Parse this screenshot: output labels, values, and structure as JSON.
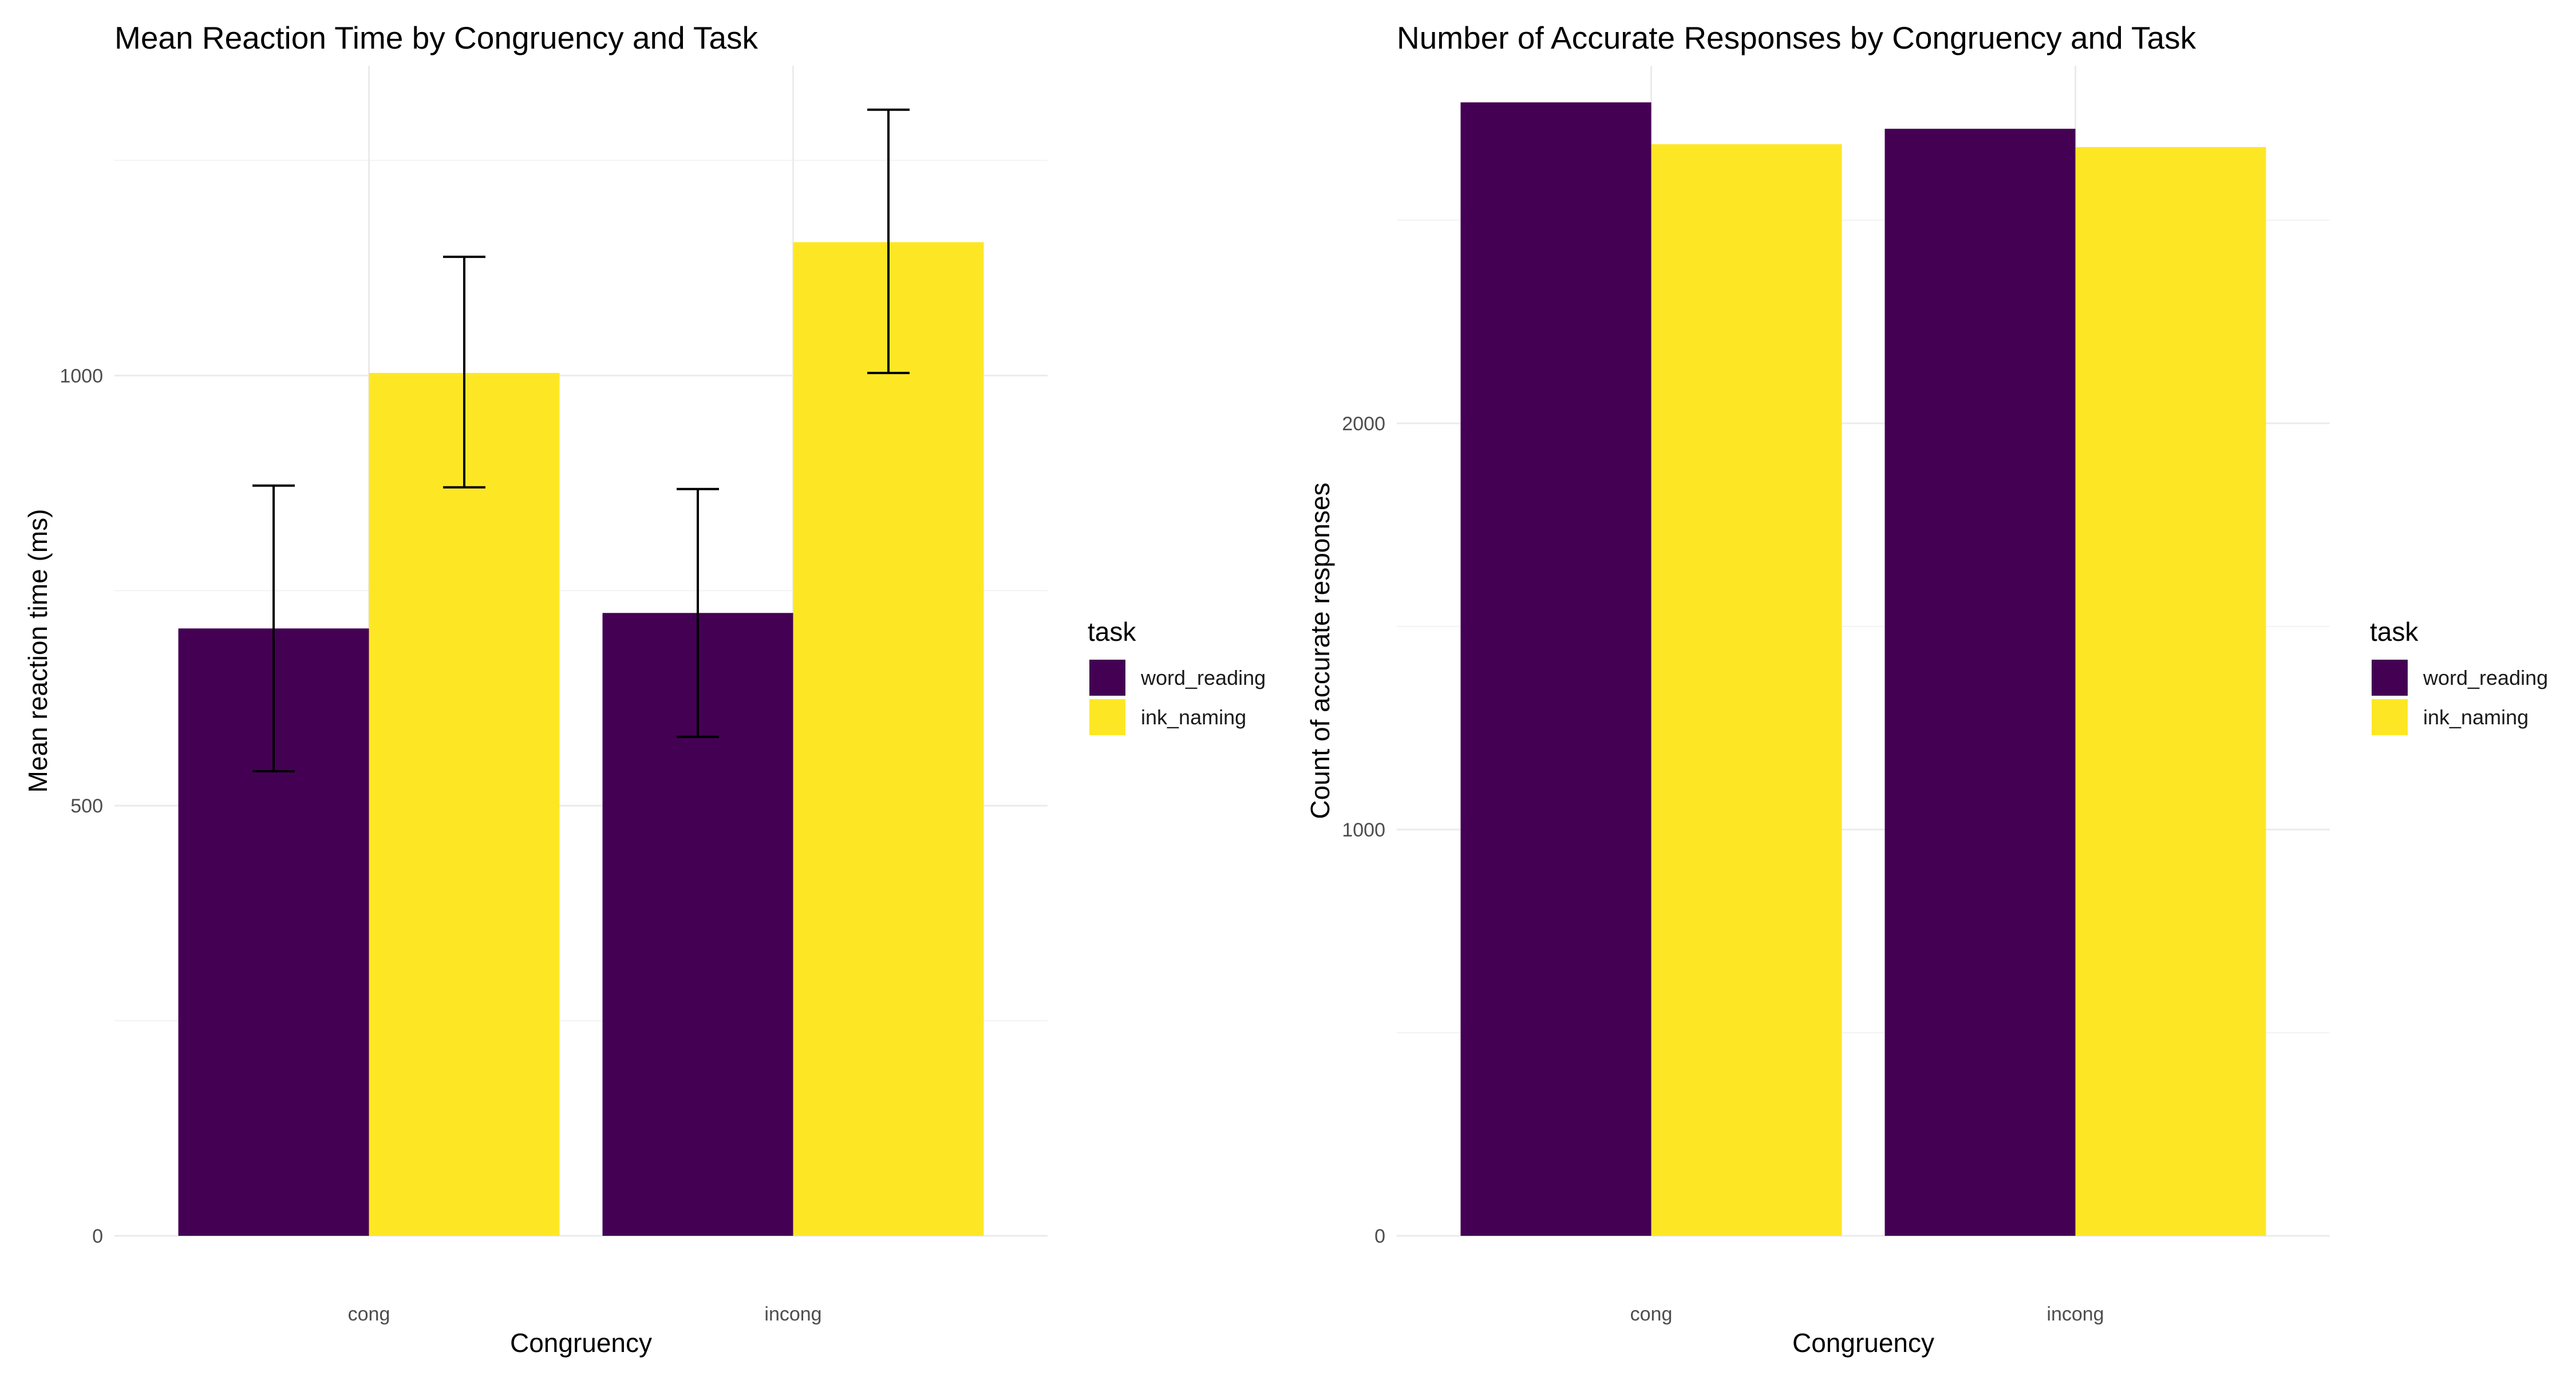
{
  "chart_data": [
    {
      "type": "bar",
      "title": "Mean Reaction Time by Congruency and Task",
      "xlabel": "Congruency",
      "ylabel": "Mean reaction time (ms)",
      "categories": [
        "cong",
        "incong"
      ],
      "ylim": [
        0,
        1360
      ],
      "yticks": [
        0,
        500,
        1000
      ],
      "minor_yticks": [
        250,
        750,
        1250
      ],
      "grid": true,
      "legend": {
        "title": "task",
        "position": "right"
      },
      "series": [
        {
          "name": "word_reading",
          "color": "#440154",
          "values": [
            706,
            724
          ],
          "error_low": [
            540,
            580
          ],
          "error_high": [
            872,
            868
          ]
        },
        {
          "name": "ink_naming",
          "color": "#FDE725",
          "values": [
            1003,
            1155
          ],
          "error_low": [
            870,
            1003
          ],
          "error_high": [
            1138,
            1309
          ]
        }
      ]
    },
    {
      "type": "bar",
      "title": "Number of Accurate Responses by Congruency and Task",
      "xlabel": "Congruency",
      "ylabel": "Count of accurate responses",
      "categories": [
        "cong",
        "incong"
      ],
      "ylim": [
        0,
        2880
      ],
      "yticks": [
        0,
        1000,
        2000
      ],
      "minor_yticks": [
        500,
        1500,
        2500
      ],
      "grid": true,
      "legend": {
        "title": "task",
        "position": "right"
      },
      "series": [
        {
          "name": "word_reading",
          "color": "#440154",
          "values": [
            2790,
            2725
          ]
        },
        {
          "name": "ink_naming",
          "color": "#FDE725",
          "values": [
            2687,
            2680
          ]
        }
      ]
    }
  ]
}
